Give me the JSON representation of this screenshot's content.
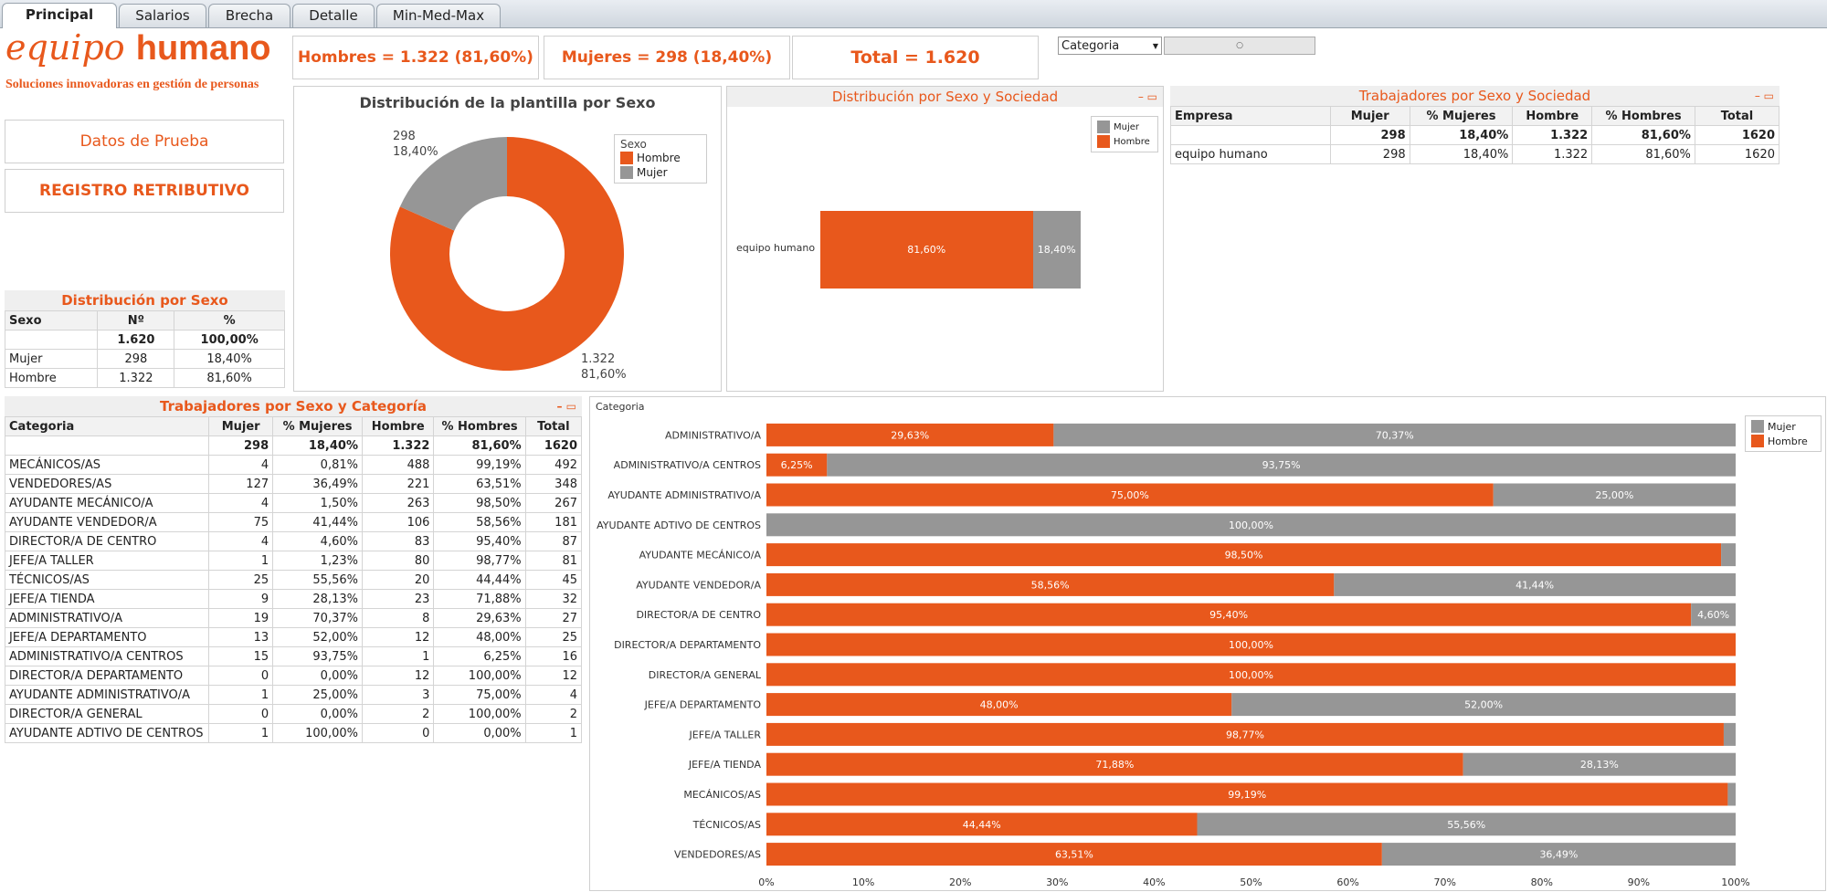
{
  "colors": {
    "hombre": "#e8581c",
    "mujer": "#969696",
    "accent": "#e8581c"
  },
  "tabs": [
    {
      "label": "Principal"
    },
    {
      "label": "Salarios"
    },
    {
      "label": "Brecha"
    },
    {
      "label": "Detalle"
    },
    {
      "label": "Min-Med-Max"
    }
  ],
  "logo": {
    "part1": "equipo",
    "part2": "humano",
    "tagline": "Soluciones innovadoras en gestión de personas"
  },
  "kpis": {
    "hombres": "Hombres = 1.322  (81,60%)",
    "mujeres": "Mujeres = 298  (18,40%)",
    "total": "Total = 1.620"
  },
  "filter": {
    "label": "Categoria"
  },
  "buttons": {
    "datos": "Datos de Prueba",
    "registro": "REGISTRO RETRIBUTIVO"
  },
  "dist_sexo": {
    "title": "Distribución por Sexo",
    "headers": [
      "Sexo",
      "Nº",
      "%"
    ],
    "total": [
      "",
      "1.620",
      "100,00%"
    ],
    "rows": [
      [
        "Mujer",
        "298",
        "18,40%"
      ],
      [
        "Hombre",
        "1.322",
        "81,60%"
      ]
    ]
  },
  "donut": {
    "title": "Distribución de la plantilla por Sexo",
    "legend_title": "Sexo",
    "legend": [
      "Hombre",
      "Mujer"
    ],
    "label_mujer_n": "298",
    "label_mujer_p": "18,40%",
    "label_hombre_n": "1.322",
    "label_hombre_p": "81,60%"
  },
  "sociedad_chart": {
    "title": "Distribución por Sexo y Sociedad",
    "legend": [
      "Mujer",
      "Hombre"
    ],
    "company": "equipo humano",
    "hombre_label": "81,60%",
    "mujer_label": "18,40%"
  },
  "sociedad_table": {
    "title": "Trabajadores por Sexo y Sociedad",
    "headers": [
      "Empresa",
      "Mujer",
      "% Mujeres",
      "Hombre",
      "% Hombres",
      "Total"
    ],
    "total": [
      "",
      "298",
      "18,40%",
      "1.322",
      "81,60%",
      "1620"
    ],
    "rows": [
      [
        "equipo humano",
        "298",
        "18,40%",
        "1.322",
        "81,60%",
        "1620"
      ]
    ]
  },
  "categoria_table": {
    "title": "Trabajadores por Sexo y Categoría",
    "headers": [
      "Categoria",
      "Mujer",
      "% Mujeres",
      "Hombre",
      "% Hombres",
      "Total"
    ],
    "total": [
      "",
      "298",
      "18,40%",
      "1.322",
      "81,60%",
      "1620"
    ],
    "rows": [
      [
        "MECÁNICOS/AS",
        "4",
        "0,81%",
        "488",
        "99,19%",
        "492"
      ],
      [
        "VENDEDORES/AS",
        "127",
        "36,49%",
        "221",
        "63,51%",
        "348"
      ],
      [
        "AYUDANTE MECÁNICO/A",
        "4",
        "1,50%",
        "263",
        "98,50%",
        "267"
      ],
      [
        "AYUDANTE VENDEDOR/A",
        "75",
        "41,44%",
        "106",
        "58,56%",
        "181"
      ],
      [
        "DIRECTOR/A DE CENTRO",
        "4",
        "4,60%",
        "83",
        "95,40%",
        "87"
      ],
      [
        "JEFE/A TALLER",
        "1",
        "1,23%",
        "80",
        "98,77%",
        "81"
      ],
      [
        "TÉCNICOS/AS",
        "25",
        "55,56%",
        "20",
        "44,44%",
        "45"
      ],
      [
        "JEFE/A TIENDA",
        "9",
        "28,13%",
        "23",
        "71,88%",
        "32"
      ],
      [
        "ADMINISTRATIVO/A",
        "19",
        "70,37%",
        "8",
        "29,63%",
        "27"
      ],
      [
        "JEFE/A DEPARTAMENTO",
        "13",
        "52,00%",
        "12",
        "48,00%",
        "25"
      ],
      [
        "ADMINISTRATIVO/A CENTROS",
        "15",
        "93,75%",
        "1",
        "6,25%",
        "16"
      ],
      [
        "DIRECTOR/A DEPARTAMENTO",
        "0",
        "0,00%",
        "12",
        "100,00%",
        "12"
      ],
      [
        "AYUDANTE ADMINISTRATIVO/A",
        "1",
        "25,00%",
        "3",
        "75,00%",
        "4"
      ],
      [
        "DIRECTOR/A GENERAL",
        "0",
        "0,00%",
        "2",
        "100,00%",
        "2"
      ],
      [
        "AYUDANTE ADTIVO DE CENTROS",
        "1",
        "100,00%",
        "0",
        "0,00%",
        "1"
      ]
    ]
  },
  "chart_data": [
    {
      "type": "pie",
      "title": "Distribución de la plantilla por Sexo",
      "categories": [
        "Hombre",
        "Mujer"
      ],
      "values": [
        1322,
        298
      ],
      "percent_labels": [
        "81,60%",
        "18,40%"
      ]
    },
    {
      "type": "bar",
      "title": "Distribución por Sexo y Sociedad",
      "categories": [
        "equipo humano"
      ],
      "series": [
        {
          "name": "Hombre",
          "values": [
            81.6
          ]
        },
        {
          "name": "Mujer",
          "values": [
            18.4
          ]
        }
      ],
      "value_labels": {
        "Hombre": [
          "81,60%"
        ],
        "Mujer": [
          "18,40%"
        ]
      }
    },
    {
      "type": "bar",
      "xlabel": "",
      "ylabel": "Categoria",
      "xlim": [
        0,
        100
      ],
      "x_ticks": [
        "0%",
        "10%",
        "20%",
        "30%",
        "40%",
        "50%",
        "60%",
        "70%",
        "80%",
        "90%",
        "100%"
      ],
      "categories": [
        "ADMINISTRATIVO/A",
        "ADMINISTRATIVO/A CENTROS",
        "AYUDANTE ADMINISTRATIVO/A",
        "AYUDANTE ADTIVO DE CENTROS",
        "AYUDANTE MECÁNICO/A",
        "AYUDANTE VENDEDOR/A",
        "DIRECTOR/A DE CENTRO",
        "DIRECTOR/A DEPARTAMENTO",
        "DIRECTOR/A GENERAL",
        "JEFE/A DEPARTAMENTO",
        "JEFE/A TALLER",
        "JEFE/A TIENDA",
        "MECÁNICOS/AS",
        "TÉCNICOS/AS",
        "VENDEDORES/AS"
      ],
      "series": [
        {
          "name": "Hombre",
          "values": [
            29.63,
            6.25,
            75.0,
            0,
            98.5,
            58.56,
            95.4,
            100,
            100,
            48.0,
            98.77,
            71.88,
            99.19,
            44.44,
            63.51
          ]
        },
        {
          "name": "Mujer",
          "values": [
            70.37,
            93.75,
            25.0,
            100,
            1.5,
            41.44,
            4.6,
            0,
            0,
            52.0,
            1.23,
            28.13,
            0.81,
            55.56,
            36.49
          ]
        }
      ],
      "hombre_labels": [
        "29,63%",
        "6,25%",
        "75,00%",
        "",
        "98,50%",
        "58,56%",
        "95,40%",
        "100,00%",
        "100,00%",
        "48,00%",
        "98,77%",
        "71,88%",
        "99,19%",
        "44,44%",
        "63,51%"
      ],
      "mujer_labels": [
        "70,37%",
        "93,75%",
        "25,00%",
        "100,00%",
        "",
        "41,44%",
        "4,60%",
        "",
        "",
        "52,00%",
        "",
        "28,13%",
        "",
        "55,56%",
        "36,49%"
      ],
      "legend": [
        "Mujer",
        "Hombre"
      ]
    }
  ]
}
